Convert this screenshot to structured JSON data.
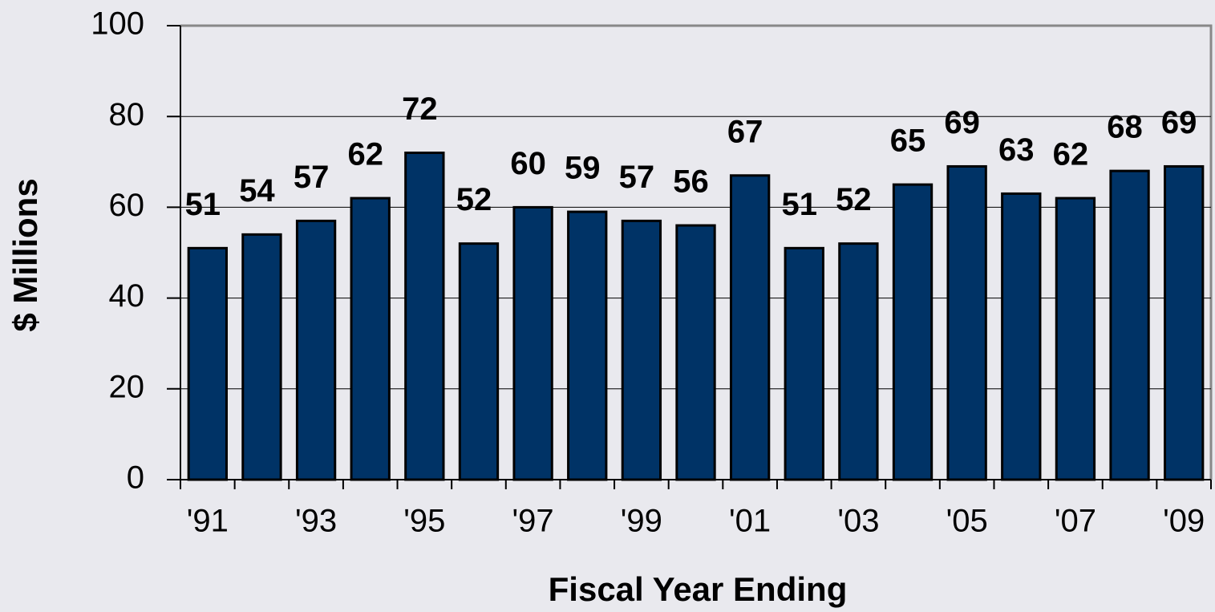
{
  "chart_data": {
    "type": "bar",
    "categories": [
      "'91",
      null,
      "'93",
      null,
      "'95",
      null,
      "'97",
      null,
      "'99",
      null,
      "'01",
      null,
      "'03",
      null,
      "'05",
      null,
      "'07",
      null,
      "'09"
    ],
    "values": [
      51,
      54,
      57,
      62,
      72,
      52,
      60,
      59,
      57,
      56,
      67,
      51,
      52,
      65,
      69,
      63,
      62,
      68,
      69
    ],
    "color": "#003366",
    "x_label": "Fiscal Year Ending",
    "y_label": "$ Millions",
    "ylim": [
      0,
      100
    ],
    "yticks": [
      0,
      20,
      40,
      60,
      80,
      100
    ],
    "grid": true
  }
}
